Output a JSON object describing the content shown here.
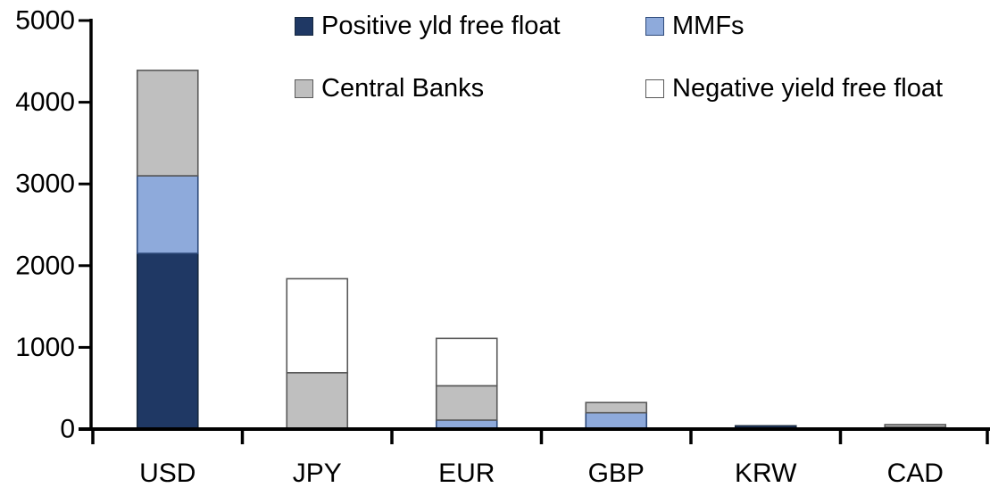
{
  "chart_data": {
    "type": "bar",
    "stacked": true,
    "title": "",
    "xlabel": "",
    "ylabel": "",
    "categories": [
      "USD",
      "JPY",
      "EUR",
      "GBP",
      "KRW",
      "CAD"
    ],
    "series": [
      {
        "name": "Positive yld free float",
        "color": "#1F3864",
        "border": "#16283E",
        "values": [
          2150,
          0,
          0,
          0,
          40,
          25
        ]
      },
      {
        "name": "MMFs",
        "color": "#8EAADB",
        "border": "#2E4A7A",
        "values": [
          950,
          0,
          110,
          200,
          0,
          0
        ]
      },
      {
        "name": "Central Banks",
        "color": "#BFBFBF",
        "border": "#595959",
        "values": [
          1290,
          690,
          420,
          125,
          0,
          30
        ]
      },
      {
        "name": "Negative yield free float",
        "color": "#FFFFFF",
        "border": "#595959",
        "values": [
          0,
          1150,
          580,
          0,
          0,
          0
        ]
      }
    ],
    "totals": [
      4390,
      1840,
      1110,
      325,
      40,
      55
    ],
    "ylim": [
      0,
      5000
    ],
    "ytick_step": 1000,
    "ytick_labels": [
      "0",
      "1000",
      "2000",
      "3000",
      "4000",
      "5000"
    ],
    "grid": false,
    "legend_position": "top",
    "axis_color": "#000000",
    "background_color": "#FFFFFF"
  }
}
